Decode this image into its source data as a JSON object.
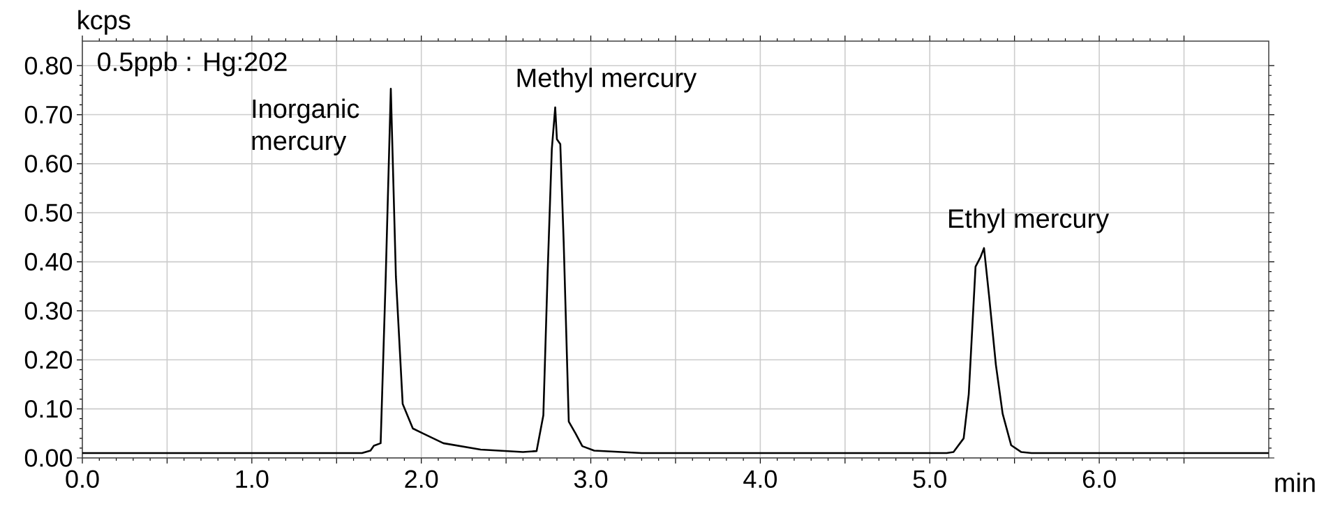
{
  "chart_data": {
    "type": "line",
    "xlabel": "min",
    "ylabel": "kcps",
    "x": [
      0,
      0.5,
      1.0,
      1.5,
      1.65,
      1.7,
      1.72,
      1.76,
      1.79,
      1.82,
      1.85,
      1.89,
      1.95,
      2.01,
      2.13,
      2.35,
      2.6,
      2.68,
      2.72,
      2.745,
      2.77,
      2.79,
      2.8,
      2.82,
      2.84,
      2.87,
      2.91,
      2.95,
      3.02,
      3.3,
      4.0,
      4.5,
      5.0,
      5.1,
      5.14,
      5.2,
      5.23,
      5.27,
      5.3,
      5.32,
      5.35,
      5.39,
      5.43,
      5.48,
      5.54,
      5.6,
      6.0,
      6.5,
      7.0
    ],
    "series": [
      {
        "color": "#000000",
        "values": [
          0.01,
          0.01,
          0.01,
          0.01,
          0.01,
          0.015,
          0.025,
          0.03,
          0.37,
          0.753,
          0.37,
          0.11,
          0.06,
          0.05,
          0.03,
          0.017,
          0.012,
          0.014,
          0.087,
          0.375,
          0.63,
          0.715,
          0.65,
          0.64,
          0.44,
          0.074,
          0.05,
          0.024,
          0.015,
          0.01,
          0.01,
          0.01,
          0.01,
          0.01,
          0.012,
          0.04,
          0.13,
          0.39,
          0.41,
          0.428,
          0.33,
          0.19,
          0.09,
          0.026,
          0.012,
          0.01,
          0.01,
          0.01,
          0.01
        ]
      }
    ],
    "xlim": [
      0,
      7.0
    ],
    "ylim": [
      0,
      0.85
    ],
    "xticks": [
      {
        "value": 0,
        "label": "0.0"
      },
      {
        "value": 0.5,
        "label": null
      },
      {
        "value": 1,
        "label": "1.0"
      },
      {
        "value": 1.5,
        "label": null
      },
      {
        "value": 2,
        "label": "2.0"
      },
      {
        "value": 2.5,
        "label": null
      },
      {
        "value": 3,
        "label": "3.0"
      },
      {
        "value": 3.5,
        "label": null
      },
      {
        "value": 4,
        "label": "4.0"
      },
      {
        "value": 4.5,
        "label": null
      },
      {
        "value": 5,
        "label": "5.0"
      },
      {
        "value": 5.5,
        "label": null
      },
      {
        "value": 6,
        "label": "6.0"
      },
      {
        "value": 6.5,
        "label": null
      }
    ],
    "yticks": [
      {
        "value": 0,
        "label": "0.00"
      },
      {
        "value": 0.1,
        "label": "0.10"
      },
      {
        "value": 0.2,
        "label": "0.20"
      },
      {
        "value": 0.3,
        "label": "0.30"
      },
      {
        "value": 0.4,
        "label": "0.40"
      },
      {
        "value": 0.5,
        "label": "0.50"
      },
      {
        "value": 0.6,
        "label": "0.60"
      },
      {
        "value": 0.7,
        "label": "0.70"
      },
      {
        "value": 0.8,
        "label": "0.80"
      }
    ],
    "grid": true,
    "annotations": [
      "0.5ppb : Hg:202",
      {
        "text": "Inorganic mercury",
        "x": 1.82,
        "y": 0.753
      },
      {
        "text": "Methyl mercury",
        "x": 2.79,
        "y": 0.715
      },
      {
        "text": "Ethyl mercury",
        "x": 5.32,
        "y": 0.428
      }
    ]
  }
}
